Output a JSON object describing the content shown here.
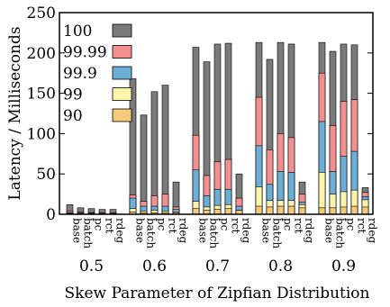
{
  "chart_data": {
    "type": "bar",
    "stacked": true,
    "title": "",
    "xlabel": "Skew Parameter of Zipfian Distribution",
    "ylabel": "Latency / Milliseconds",
    "ylim": [
      0,
      250
    ],
    "yticks": [
      0,
      50,
      100,
      150,
      200,
      250
    ],
    "grid": false,
    "legend_position": "top-left",
    "groups": [
      "0.5",
      "0.6",
      "0.7",
      "0.8",
      "0.9"
    ],
    "methods": [
      "base",
      "batch",
      "pc",
      "rct",
      "rdeg"
    ],
    "series": [
      {
        "name": "90",
        "color": "#f5c97a",
        "values": [
          [
            0.5,
            0.4,
            0.3,
            0.3,
            0.3
          ],
          [
            3,
            2,
            2,
            2,
            1.5
          ],
          [
            7,
            5,
            6,
            7,
            5
          ],
          [
            10,
            9,
            10,
            10,
            8
          ],
          [
            8,
            8,
            9,
            10,
            9
          ]
        ]
      },
      {
        "name": "99",
        "color": "#fcf4a8",
        "values": [
          [
            1.2,
            0.8,
            0.6,
            0.5,
            0.5
          ],
          [
            7,
            4,
            5,
            4,
            3
          ],
          [
            16,
            9,
            11,
            12,
            5
          ],
          [
            34,
            17,
            17,
            17,
            12
          ],
          [
            52,
            25,
            28,
            30,
            18
          ]
        ]
      },
      {
        "name": "99.9",
        "color": "#6baed6",
        "values": [
          [
            2,
            1.5,
            1.2,
            1,
            1
          ],
          [
            20,
            10,
            10,
            10,
            6
          ],
          [
            55,
            23,
            31,
            31,
            10
          ],
          [
            85,
            37,
            53,
            52,
            15
          ],
          [
            115,
            53,
            72,
            78,
            22
          ]
        ]
      },
      {
        "name": "99.99",
        "color": "#f48f8f",
        "values": [
          [
            4,
            2.5,
            2,
            2,
            1.8
          ],
          [
            24,
            16,
            23,
            25,
            9
          ],
          [
            98,
            48,
            65,
            68,
            20
          ],
          [
            145,
            80,
            100,
            95,
            25
          ],
          [
            175,
            110,
            140,
            142,
            27
          ]
        ]
      },
      {
        "name": "100",
        "color": "#7a7a7a",
        "values": [
          [
            12,
            8,
            7,
            6,
            6
          ],
          [
            168,
            123,
            152,
            160,
            40
          ],
          [
            207,
            189,
            211,
            212,
            50
          ],
          [
            213,
            192,
            213,
            211,
            40
          ],
          [
            213,
            202,
            211,
            210,
            33
          ]
        ]
      }
    ]
  }
}
